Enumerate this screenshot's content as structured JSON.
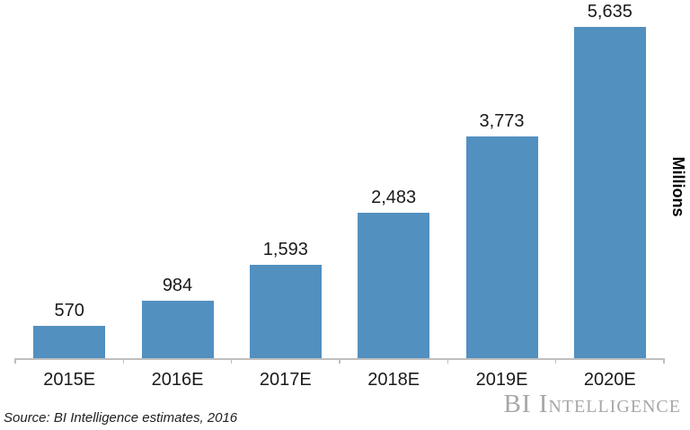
{
  "chart_data": {
    "type": "bar",
    "categories": [
      "2015E",
      "2016E",
      "2017E",
      "2018E",
      "2019E",
      "2020E"
    ],
    "values": [
      570,
      984,
      1593,
      2483,
      3773,
      5635
    ],
    "value_labels": [
      "570",
      "984",
      "1,593",
      "2,483",
      "3,773",
      "5,635"
    ],
    "title": "",
    "xlabel": "",
    "ylabel": "Millions",
    "ylim": [
      0,
      6000
    ],
    "grid": false,
    "legend": false,
    "bar_color": "#5290c0",
    "axis_color": "#bfbfbf"
  },
  "annotations": {
    "source_note": "Source: BI Intelligence estimates, 2016",
    "brand": "BI Intelligence"
  },
  "colors": {
    "bar": "#5290c0",
    "axis": "#bfbfbf",
    "label_text": "#1a1a1a",
    "brand_text": "#a7a7a7",
    "background": "#ffffff"
  }
}
